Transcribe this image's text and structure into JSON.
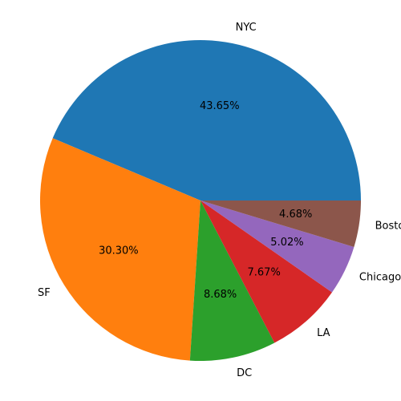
{
  "chart_data": {
    "type": "pie",
    "title": "",
    "categories": [
      "NYC",
      "SF",
      "DC",
      "LA",
      "Chicago",
      "Boston"
    ],
    "values": [
      43.65,
      30.3,
      8.68,
      7.67,
      5.02,
      4.68
    ],
    "percent_labels": [
      "43.65%",
      "30.30%",
      "8.68%",
      "7.67%",
      "5.02%",
      "4.68%"
    ],
    "colors": [
      "#1f77b4",
      "#ff7f0e",
      "#2ca02c",
      "#d62728",
      "#9467bd",
      "#8c564b"
    ],
    "start_angle_deg": 0,
    "direction": "counterclockwise"
  }
}
